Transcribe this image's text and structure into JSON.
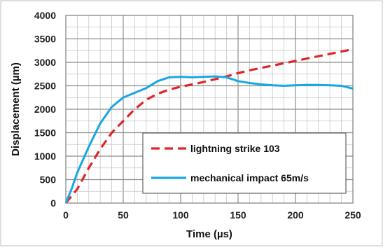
{
  "chart_data": {
    "type": "line",
    "title": "",
    "xlabel": "Time  (µs)",
    "ylabel": "Displacement (µm)",
    "xlim": [
      0,
      250
    ],
    "ylim": [
      0,
      4000
    ],
    "x_ticks": [
      "0",
      "50",
      "100",
      "150",
      "200",
      "250"
    ],
    "y_ticks": [
      "0",
      "500",
      "1000",
      "1500",
      "2000",
      "2500",
      "3000",
      "3500",
      "4000"
    ],
    "grid": true,
    "legend_position": "bottom-right",
    "series": [
      {
        "name": "lightning strike 103",
        "color": "#e0262a",
        "style": "dashed",
        "points": [
          [
            0,
            0
          ],
          [
            10,
            300
          ],
          [
            20,
            750
          ],
          [
            30,
            1150
          ],
          [
            40,
            1500
          ],
          [
            50,
            1750
          ],
          [
            60,
            2000
          ],
          [
            70,
            2200
          ],
          [
            80,
            2330
          ],
          [
            90,
            2420
          ],
          [
            100,
            2480
          ],
          [
            110,
            2530
          ],
          [
            120,
            2580
          ],
          [
            130,
            2640
          ],
          [
            140,
            2700
          ],
          [
            150,
            2770
          ],
          [
            160,
            2830
          ],
          [
            170,
            2880
          ],
          [
            180,
            2930
          ],
          [
            190,
            2980
          ],
          [
            200,
            3030
          ],
          [
            210,
            3080
          ],
          [
            220,
            3130
          ],
          [
            230,
            3180
          ],
          [
            240,
            3230
          ],
          [
            250,
            3280
          ]
        ]
      },
      {
        "name": "mechanical impact 65m/s",
        "color": "#19a7e0",
        "style": "solid",
        "points": [
          [
            0,
            0
          ],
          [
            5,
            300
          ],
          [
            10,
            650
          ],
          [
            20,
            1200
          ],
          [
            30,
            1700
          ],
          [
            40,
            2050
          ],
          [
            50,
            2250
          ],
          [
            60,
            2350
          ],
          [
            70,
            2450
          ],
          [
            80,
            2600
          ],
          [
            90,
            2680
          ],
          [
            100,
            2690
          ],
          [
            110,
            2680
          ],
          [
            120,
            2690
          ],
          [
            130,
            2700
          ],
          [
            140,
            2680
          ],
          [
            150,
            2600
          ],
          [
            160,
            2560
          ],
          [
            170,
            2530
          ],
          [
            180,
            2510
          ],
          [
            190,
            2500
          ],
          [
            200,
            2510
          ],
          [
            210,
            2520
          ],
          [
            220,
            2520
          ],
          [
            230,
            2510
          ],
          [
            240,
            2500
          ],
          [
            250,
            2440
          ]
        ]
      }
    ]
  }
}
